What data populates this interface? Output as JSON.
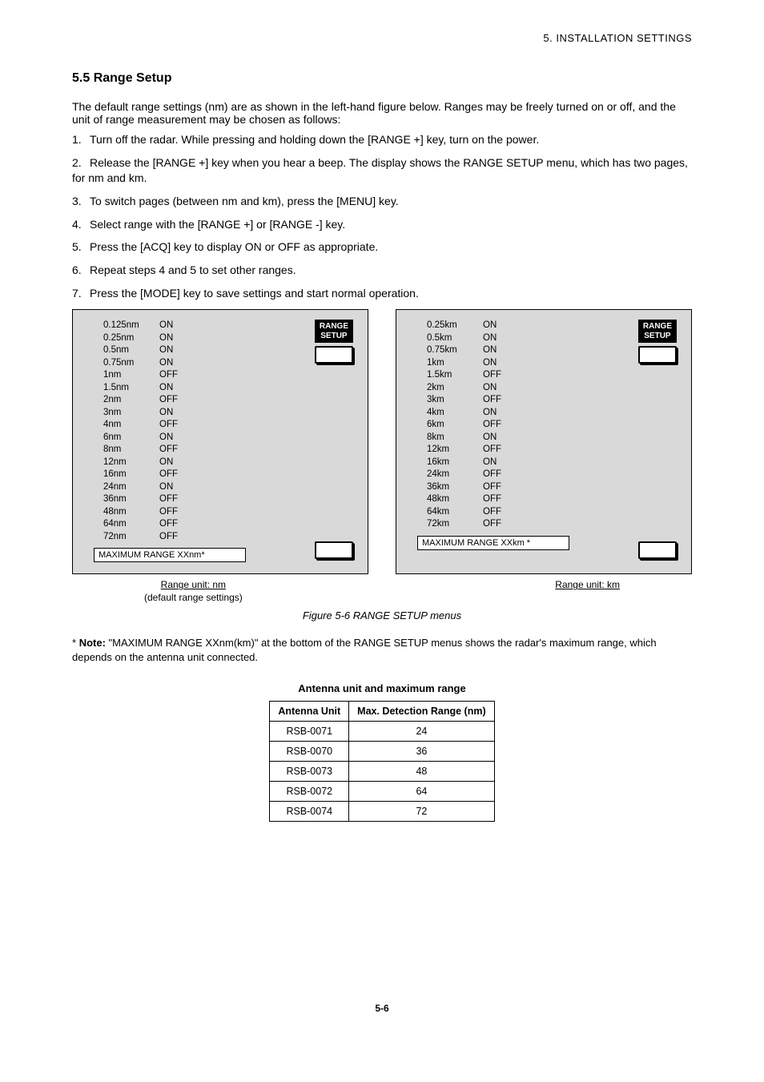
{
  "header": "5. INSTALLATION SETTINGS",
  "section_title": "5.5 Range Setup",
  "intro": "The default range settings (nm) are as shown in the left-hand figure below. Ranges may be freely turned on or off, and the unit of range measurement may be chosen as follows:",
  "steps": [
    "Turn off the radar. While pressing and holding down the [RANGE +] key, turn on the power.",
    "Release the [RANGE +] key when you hear a beep. The display shows the RANGE SETUP menu, which has two pages, for nm and km.",
    "To switch pages (between nm and km), press the [MENU] key.",
    "Select range with the [RANGE +] or [RANGE -] key.",
    "Press the [ACQ] key to display ON or OFF as appropriate.",
    "Repeat steps 4 and 5 to set other ranges.",
    "Press the [MODE] key to save settings and start normal operation."
  ],
  "panel_nm": {
    "label_line1": "RANGE",
    "label_line2": "SETUP",
    "rows": [
      {
        "r": "0.125nm",
        "s": "ON"
      },
      {
        "r": "0.25nm",
        "s": "ON"
      },
      {
        "r": "0.5nm",
        "s": "ON"
      },
      {
        "r": "0.75nm",
        "s": "ON"
      },
      {
        "r": "1nm",
        "s": "OFF"
      },
      {
        "r": "1.5nm",
        "s": "ON"
      },
      {
        "r": "2nm",
        "s": "OFF"
      },
      {
        "r": "3nm",
        "s": "ON"
      },
      {
        "r": "4nm",
        "s": "OFF"
      },
      {
        "r": "6nm",
        "s": "ON"
      },
      {
        "r": "8nm",
        "s": "OFF"
      },
      {
        "r": "12nm",
        "s": "ON"
      },
      {
        "r": "16nm",
        "s": "OFF"
      },
      {
        "r": "24nm",
        "s": "ON"
      },
      {
        "r": "36nm",
        "s": "OFF"
      },
      {
        "r": "48nm",
        "s": "OFF"
      },
      {
        "r": "64nm",
        "s": "OFF"
      },
      {
        "r": "72nm",
        "s": "OFF"
      }
    ],
    "max_range": "MAXIMUM RANGE XXnm*"
  },
  "panel_km": {
    "label_line1": "RANGE",
    "label_line2": "SETUP",
    "rows": [
      {
        "r": "0.25km",
        "s": "ON"
      },
      {
        "r": "0.5km",
        "s": "ON"
      },
      {
        "r": "0.75km",
        "s": "ON"
      },
      {
        "r": "1km",
        "s": "ON"
      },
      {
        "r": "1.5km",
        "s": "OFF"
      },
      {
        "r": "2km",
        "s": "ON"
      },
      {
        "r": "3km",
        "s": "OFF"
      },
      {
        "r": "4km",
        "s": "ON"
      },
      {
        "r": "6km",
        "s": "OFF"
      },
      {
        "r": "8km",
        "s": "ON"
      },
      {
        "r": "12km",
        "s": "OFF"
      },
      {
        "r": "16km",
        "s": "ON"
      },
      {
        "r": "24km",
        "s": "OFF"
      },
      {
        "r": "36km",
        "s": "OFF"
      },
      {
        "r": "48km",
        "s": "OFF"
      },
      {
        "r": "64km",
        "s": "OFF"
      },
      {
        "r": "72km",
        "s": "OFF"
      }
    ],
    "max_range": "MAXIMUM RANGE XXkm *"
  },
  "caption_nm_title": "Range unit: nm",
  "caption_nm_sub": "(default range settings)",
  "caption_km_title": "Range unit: km",
  "figure_label": "Figure 5-6 RANGE SETUP menus",
  "note_label": "Note:",
  "note_text": "\"MAXIMUM RANGE XXnm(km)\" at the bottom of the RANGE SETUP menus shows the radar's maximum range, which depends on the antenna unit connected.",
  "table_title": "Antenna unit and maximum range",
  "table": {
    "columns": [
      "Antenna Unit",
      "Max. Detection Range (nm)"
    ],
    "rows": [
      [
        "RSB-0071",
        "24"
      ],
      [
        "RSB-0070",
        "36"
      ],
      [
        "RSB-0073",
        "48"
      ],
      [
        "RSB-0072",
        "64"
      ],
      [
        "RSB-0074",
        "72"
      ]
    ]
  },
  "page_number": "5-6"
}
